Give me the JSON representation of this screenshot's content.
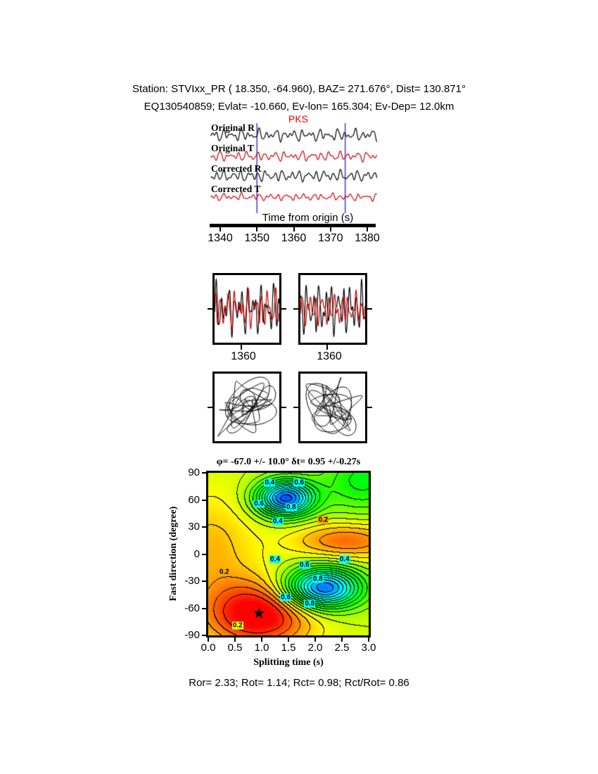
{
  "header": {
    "line1": "Station: STVIxx_PR ( 18.350, -64.960), BAZ= 271.676°, Dist= 130.871°",
    "line2": "EQ130540859; Evlat= -10.660, Ev-lon= 165.304; Ev-Dep= 12.0km"
  },
  "footer": {
    "stats": "Ror= 2.33; Rot= 1.14; Rct= 0.98; Rct/Rot= 0.86"
  },
  "chart_data": {
    "seismograms": {
      "type": "line",
      "phase": "PKS",
      "phase_color": "#ee0000",
      "xlabel": "Time from origin (s)",
      "xlim": [
        1337,
        1383
      ],
      "xticks": [
        1340,
        1350,
        1360,
        1370,
        1380
      ],
      "window_s": [
        1350,
        1374
      ],
      "window_color": "#4040c0",
      "traces": [
        {
          "label": "Original R",
          "color": "#000000",
          "components": [
            [
              1.0,
              0.42,
              0.3
            ],
            [
              0.7,
              0.61,
              2.1
            ],
            [
              0.5,
              0.23,
              4.0
            ],
            [
              0.35,
              0.95,
              1.2
            ]
          ]
        },
        {
          "label": "Original T",
          "color": "#cc0000",
          "components": [
            [
              0.8,
              0.4,
              1.8
            ],
            [
              0.6,
              0.58,
              0.4
            ],
            [
              0.4,
              0.27,
              3.1
            ],
            [
              0.3,
              0.9,
              5.0
            ]
          ]
        },
        {
          "label": "Corrected R",
          "color": "#000000",
          "components": [
            [
              1.0,
              0.44,
              1.1
            ],
            [
              0.65,
              0.63,
              3.3
            ],
            [
              0.5,
              0.25,
              0.7
            ],
            [
              0.3,
              0.92,
              2.5
            ]
          ]
        },
        {
          "label": "Corrected T",
          "color": "#cc0000",
          "components": [
            [
              0.55,
              0.41,
              2.6
            ],
            [
              0.45,
              0.6,
              5.1
            ],
            [
              0.35,
              0.24,
              1.9
            ],
            [
              0.25,
              0.88,
              0.2
            ]
          ]
        }
      ]
    },
    "zoom_panels": {
      "type": "line",
      "xtick": 1360,
      "xlim_s": [
        1350,
        1374
      ],
      "panels": [
        "original",
        "corrected"
      ]
    },
    "particle_motion": {
      "type": "scatter",
      "panels": [
        "original",
        "corrected"
      ],
      "x_component": "T",
      "y_component": "R"
    },
    "error_surface": {
      "type": "heatmap",
      "title": "φ= -67.0 +/- 10.0° δt= 0.95 +/-0.27s",
      "xlabel": "Splitting time (s)",
      "ylabel": "Fast direction (degree)",
      "xlim": [
        0.0,
        3.0
      ],
      "ylim": [
        -90,
        90
      ],
      "xticks": [
        "0.0",
        "0.5",
        "1.0",
        "1.5",
        "2.0",
        "2.5",
        "3.0"
      ],
      "yticks": [
        "90",
        "60",
        "30",
        "0",
        "-30",
        "-60",
        "-90"
      ],
      "best_fit": {
        "fast_direction_deg": -67.0,
        "fast_direction_err_deg": 10.0,
        "splitting_time_s": 0.95,
        "splitting_time_err_s": 0.27
      },
      "star": {
        "t": 0.95,
        "p": -67,
        "glyph": "★"
      },
      "contour_step": 0.05,
      "field_base": 0.3,
      "field_gaussians": [
        [
          -0.34,
          0.95,
          -67,
          0.7,
          26
        ],
        [
          0.62,
          1.45,
          62,
          0.38,
          14
        ],
        [
          0.62,
          2.15,
          -38,
          0.5,
          16
        ],
        [
          -0.2,
          2.6,
          15,
          0.7,
          14
        ],
        [
          0.22,
          2.9,
          82,
          0.55,
          25
        ],
        [
          -0.12,
          0.05,
          5,
          0.6,
          45
        ]
      ],
      "contour_labels": [
        {
          "text": "0.4",
          "t": 1.15,
          "p": 79,
          "bg": "#00ffff"
        },
        {
          "text": "0.6",
          "t": 1.7,
          "p": 79,
          "bg": "#00ffff"
        },
        {
          "text": "0.6",
          "t": 0.95,
          "p": 56,
          "bg": "#00ffff"
        },
        {
          "text": "0.8",
          "t": 1.55,
          "p": 52,
          "bg": "#00ffff"
        },
        {
          "text": "0.4",
          "t": 1.3,
          "p": 36,
          "bg": "#00ffff"
        },
        {
          "text": "0.2",
          "t": 2.15,
          "p": 38,
          "bg": "#ffaa00"
        },
        {
          "text": "0.4",
          "t": 1.25,
          "p": -6,
          "bg": "#00ffff"
        },
        {
          "text": "0.6",
          "t": 1.8,
          "p": -12,
          "bg": "#00ffff"
        },
        {
          "text": "0.4",
          "t": 2.55,
          "p": -6,
          "bg": "#00ffff"
        },
        {
          "text": "0.8",
          "t": 2.05,
          "p": -28,
          "bg": "#00ffff"
        },
        {
          "text": "0.6",
          "t": 1.45,
          "p": -48,
          "bg": "#00ffff"
        },
        {
          "text": "0.8",
          "t": 1.9,
          "p": -55,
          "bg": "#00ffff"
        },
        {
          "text": "0.2",
          "t": 0.55,
          "p": -79,
          "bg": "#ffff00"
        },
        {
          "text": "0.2",
          "t": 0.3,
          "p": -20,
          "bg": "#ffaa00"
        }
      ]
    }
  }
}
